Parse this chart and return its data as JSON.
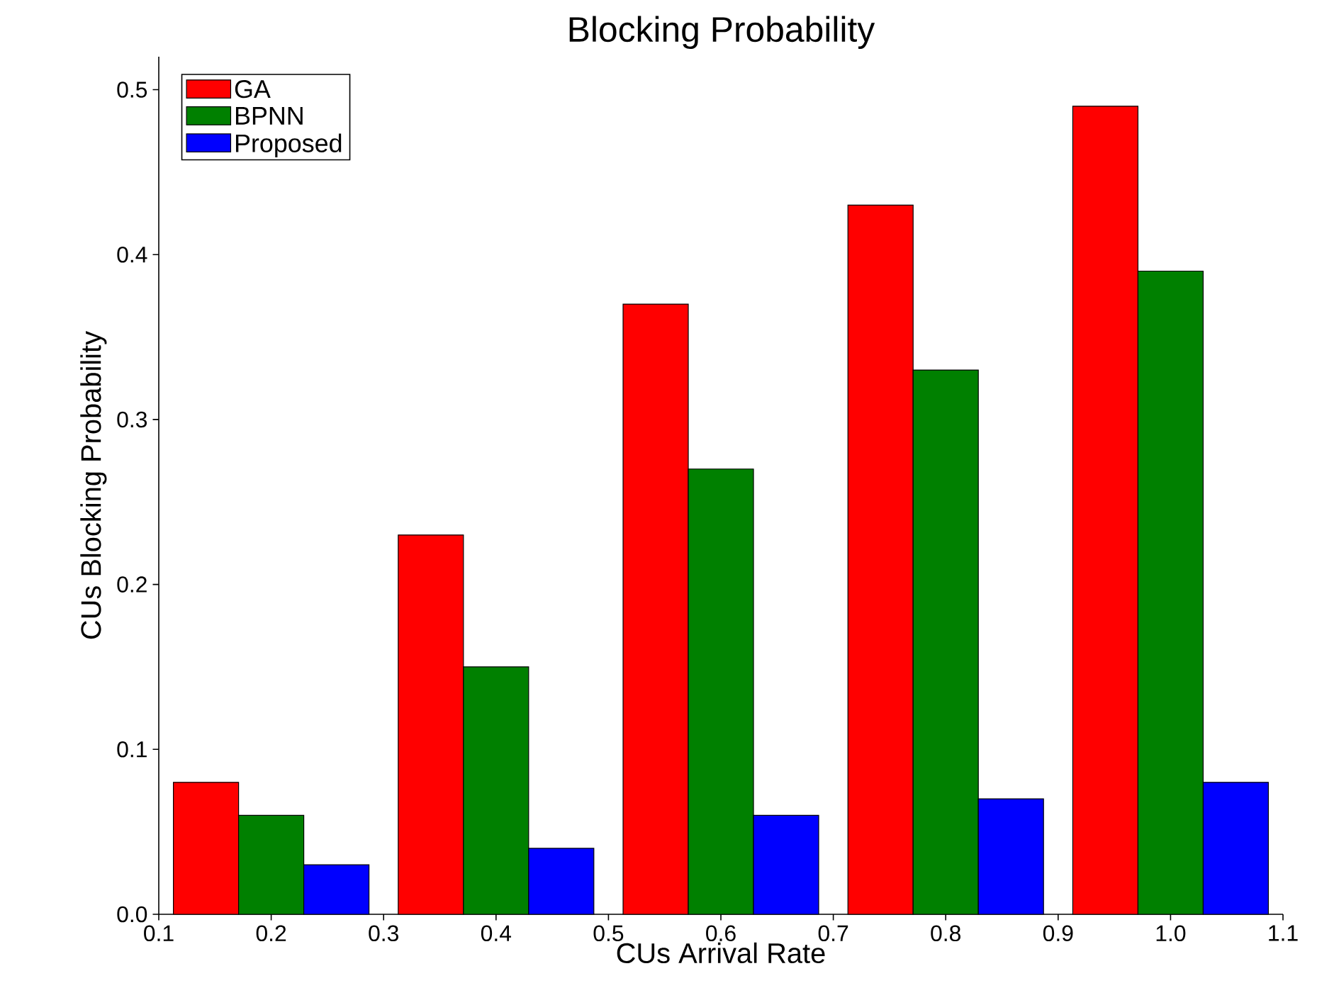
{
  "chart_data": {
    "type": "bar",
    "title": "Blocking Probability",
    "xlabel": "CUs Arrival Rate",
    "ylabel": "CUs Blocking Probability",
    "x": [
      0.2,
      0.4,
      0.6,
      0.8,
      1.0
    ],
    "series": [
      {
        "name": "GA",
        "color": "#ff0000",
        "values": [
          0.08,
          0.23,
          0.37,
          0.43,
          0.49
        ]
      },
      {
        "name": "BPNN",
        "color": "#008000",
        "values": [
          0.06,
          0.15,
          0.27,
          0.33,
          0.39
        ]
      },
      {
        "name": "Proposed",
        "color": "#0000ff",
        "values": [
          0.03,
          0.04,
          0.06,
          0.07,
          0.08
        ]
      }
    ],
    "xlim": [
      0.1,
      1.1
    ],
    "ylim": [
      0,
      0.52
    ],
    "xticks": [
      0.1,
      0.2,
      0.3,
      0.4,
      0.5,
      0.6,
      0.7,
      0.8,
      0.9,
      {
        "value": 1.0,
        "label": "1.0"
      },
      1.1
    ],
    "yticks": [
      {
        "value": 0,
        "label": "0.0"
      },
      0.1,
      0.2,
      0.3,
      0.4,
      0.5
    ],
    "legend": "top left"
  }
}
